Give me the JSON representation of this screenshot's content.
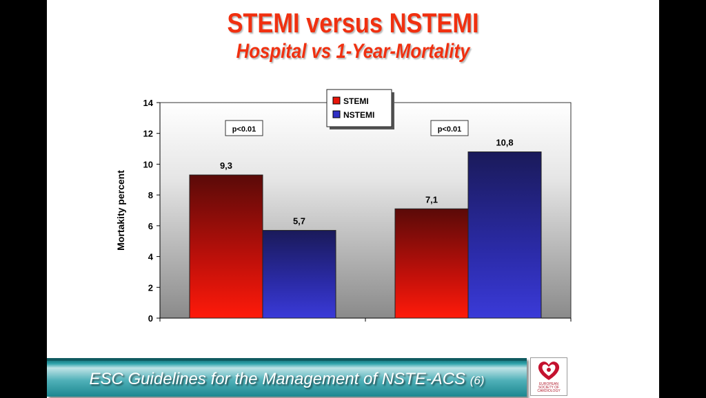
{
  "slide": {
    "title": "STEMI  versus  NSTEMI",
    "subtitle": "Hospital vs 1-Year-Mortality",
    "footer": {
      "text": "ESC Guidelines for the Management of NSTE-ACS",
      "ref": "(6)"
    },
    "logo": {
      "text": "EUROPEAN\nSOCIETY OF\nCARDIOLOGY",
      "icon": "heart-logo-icon"
    }
  },
  "chart_data": {
    "type": "bar",
    "categories": [
      "",
      ""
    ],
    "series": [
      {
        "name": "STEMI",
        "values": [
          9.3,
          7.1
        ],
        "color": "#e8150a"
      },
      {
        "name": "NSTEMI",
        "values": [
          5.7,
          10.8
        ],
        "color": "#2f2fc4"
      }
    ],
    "data_labels": [
      [
        "9,3",
        "7,1"
      ],
      [
        "5,7",
        "10,8"
      ]
    ],
    "ylabel": "Mortakity percent",
    "xlabel": "",
    "ylim": [
      0,
      14
    ],
    "yticks": [
      "0",
      "2",
      "4",
      "6",
      "8",
      "10",
      "12",
      "14"
    ],
    "legend": "top-center",
    "annotations": [
      "p<0.01",
      "p<0.01"
    ],
    "grid": false
  }
}
